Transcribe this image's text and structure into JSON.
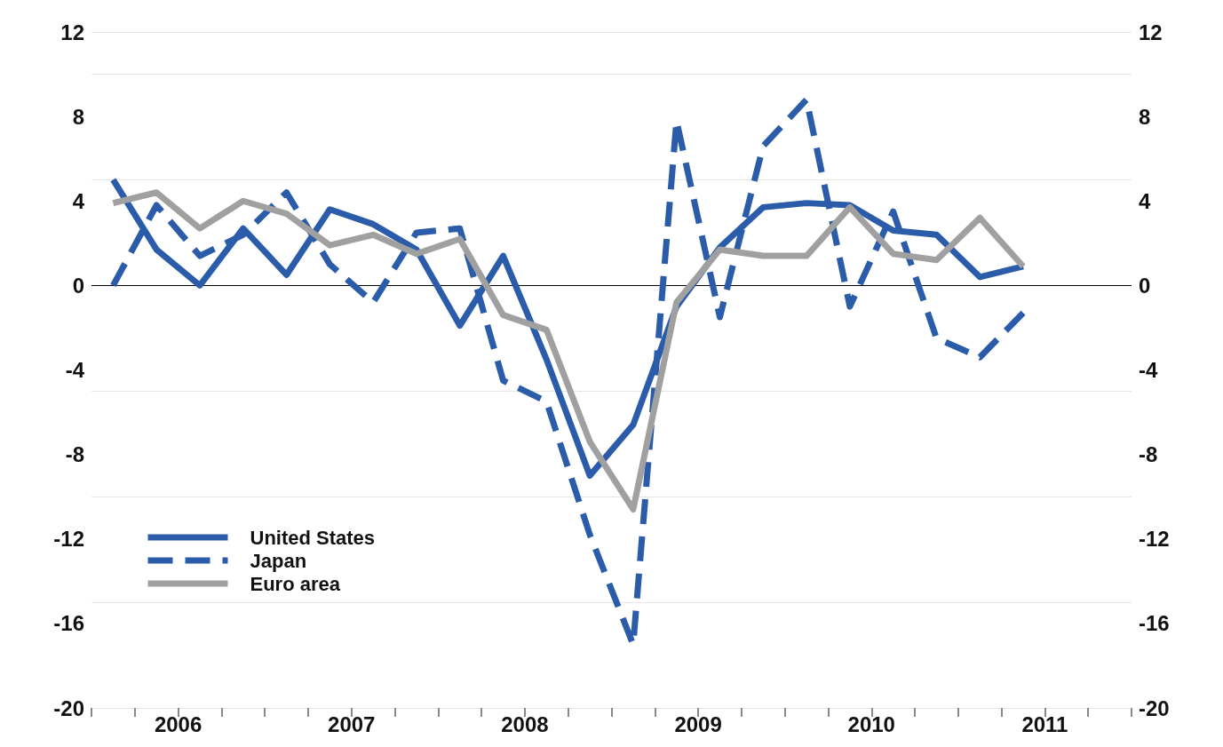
{
  "chart_data": {
    "type": "line",
    "x": [
      2006.125,
      2006.375,
      2006.625,
      2006.875,
      2007.125,
      2007.375,
      2007.625,
      2007.875,
      2008.125,
      2008.375,
      2008.625,
      2008.875,
      2009.125,
      2009.375,
      2009.625,
      2009.875,
      2010.125,
      2010.375,
      2010.625,
      2010.875,
      2011.125,
      2011.375
    ],
    "series": [
      {
        "name": "United States",
        "color": "#2a5caa",
        "line_style": "solid",
        "values": [
          5.0,
          1.7,
          0.0,
          2.7,
          0.5,
          3.6,
          2.9,
          1.7,
          -1.9,
          1.4,
          -3.5,
          -9.0,
          -6.6,
          -1.0,
          1.8,
          3.7,
          3.9,
          3.8,
          2.6,
          2.4,
          0.4,
          0.9
        ]
      },
      {
        "name": "Japan",
        "color": "#2a5caa",
        "line_style": "dashed",
        "values": [
          0.0,
          3.8,
          1.4,
          2.4,
          4.4,
          1.0,
          -0.8,
          2.5,
          2.7,
          -4.5,
          -5.5,
          -11.8,
          -17.0,
          7.8,
          -1.5,
          6.6,
          8.8,
          -1.0,
          3.5,
          -2.5,
          -3.4,
          -1.3
        ]
      },
      {
        "name": "Euro area",
        "color": "#a0a0a0",
        "line_style": "solid",
        "values": [
          3.9,
          4.4,
          2.7,
          4.0,
          3.4,
          1.9,
          2.4,
          1.5,
          2.2,
          -1.4,
          -2.1,
          -7.4,
          -10.6,
          -0.8,
          1.7,
          1.4,
          1.4,
          3.7,
          1.5,
          1.2,
          3.2,
          0.9
        ]
      }
    ],
    "xlim": [
      2006,
      2012
    ],
    "xticks": [
      {
        "value": 2006,
        "label": null
      },
      {
        "value": 2006.25,
        "label": null
      },
      {
        "value": 2006.5,
        "label": "2006"
      },
      {
        "value": 2006.75,
        "label": null
      },
      {
        "value": 2007,
        "label": null
      },
      {
        "value": 2007.25,
        "label": null
      },
      {
        "value": 2007.5,
        "label": "2007"
      },
      {
        "value": 2007.75,
        "label": null
      },
      {
        "value": 2008,
        "label": null
      },
      {
        "value": 2008.25,
        "label": null
      },
      {
        "value": 2008.5,
        "label": "2008"
      },
      {
        "value": 2008.75,
        "label": null
      },
      {
        "value": 2009,
        "label": null
      },
      {
        "value": 2009.25,
        "label": null
      },
      {
        "value": 2009.5,
        "label": "2009"
      },
      {
        "value": 2009.75,
        "label": null
      },
      {
        "value": 2010,
        "label": null
      },
      {
        "value": 2010.25,
        "label": null
      },
      {
        "value": 2010.5,
        "label": "2010"
      },
      {
        "value": 2010.75,
        "label": null
      },
      {
        "value": 2011,
        "label": null
      },
      {
        "value": 2011.25,
        "label": null
      },
      {
        "value": 2011.5,
        "label": "2011"
      },
      {
        "value": 2011.75,
        "label": null
      },
      {
        "value": 2012,
        "label": null
      }
    ],
    "ylim": [
      -20,
      12
    ],
    "yticks": [
      -20,
      -16,
      -12,
      -8,
      -4,
      0,
      4,
      8,
      12
    ],
    "y2lim": [
      -20,
      12
    ],
    "y2ticks": [
      -20,
      -16,
      -12,
      -8,
      -4,
      0,
      4,
      8,
      12
    ],
    "ref_lines": [
      {
        "axis": "y",
        "value": 0,
        "color": "#000000"
      }
    ],
    "grid": "y",
    "legend": "bottom left",
    "marker": "none"
  }
}
